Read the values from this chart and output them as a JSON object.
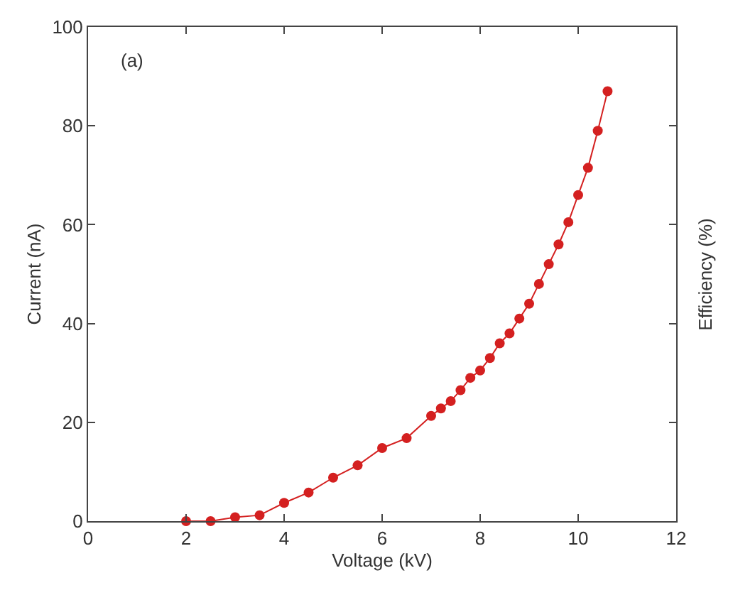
{
  "chart_data": {
    "type": "line",
    "xlabel": "Voltage (kV)",
    "ylabel": "Current (nA)",
    "y2label": "Efficiency (%)",
    "annotations": [
      "(a)"
    ],
    "x": [
      2,
      2.5,
      3,
      3.5,
      4,
      4.5,
      5,
      5.5,
      6,
      6.5,
      7,
      7.2,
      7.4,
      7.6,
      7.8,
      8,
      8.2,
      8.4,
      8.6,
      8.8,
      9,
      9.2,
      9.4,
      9.6,
      9.8,
      10,
      10.2,
      10.4,
      10.6
    ],
    "series": [
      {
        "color": "#d42020",
        "values": [
          0,
          0,
          0.8,
          1.2,
          3.7,
          5.8,
          8.8,
          11.3,
          14.8,
          16.8,
          21.3,
          22.8,
          24.3,
          26.5,
          29,
          30.5,
          33,
          36,
          38,
          41,
          44,
          48,
          52,
          56,
          60.5,
          66,
          71.5,
          79,
          87
        ]
      }
    ],
    "xlim": [
      0,
      12
    ],
    "xticks": [
      0,
      2,
      4,
      6,
      8,
      10,
      12
    ],
    "ylim": [
      0,
      100
    ],
    "yticks": [
      0,
      20,
      40,
      60,
      80,
      100
    ],
    "legend": false,
    "marker": "circle",
    "line_style": "solid"
  }
}
